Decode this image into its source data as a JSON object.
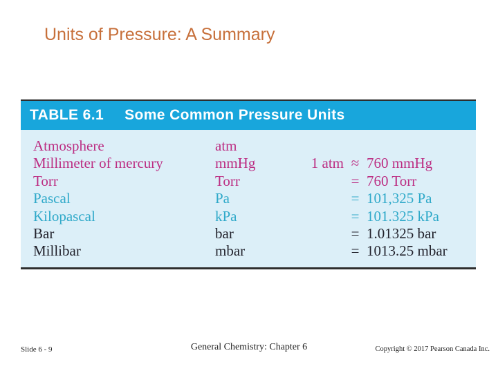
{
  "title": "Units of Pressure: A Summary",
  "table": {
    "label": "TABLE 6.1",
    "caption": "Some Common Pressure Units",
    "rows": [
      {
        "name": "Atmosphere",
        "abbr": "atm",
        "prefix": "",
        "sign": "",
        "value": "",
        "color": "magenta"
      },
      {
        "name": "Millimeter of mercury",
        "abbr": "mmHg",
        "prefix": "1 atm",
        "sign": "≈",
        "value": "760 mmHg",
        "color": "magenta"
      },
      {
        "name": "Torr",
        "abbr": "Torr",
        "prefix": "",
        "sign": "=",
        "value": "760 Torr",
        "color": "magenta"
      },
      {
        "name": "Pascal",
        "abbr": "Pa",
        "prefix": "",
        "sign": "=",
        "value": "101,325 Pa",
        "color": "cyan"
      },
      {
        "name": "Kilopascal",
        "abbr": "kPa",
        "prefix": "",
        "sign": "=",
        "value": "101.325 kPa",
        "color": "cyan"
      },
      {
        "name": "Bar",
        "abbr": "bar",
        "prefix": "",
        "sign": "=",
        "value": "1.01325 bar",
        "color": "black"
      },
      {
        "name": "Millibar",
        "abbr": "mbar",
        "prefix": "",
        "sign": "=",
        "value": "1013.25 mbar",
        "color": "black"
      }
    ]
  },
  "footer": {
    "slide_number": "Slide 6 - 9",
    "center": "General Chemistry: Chapter 6",
    "copyright": "Copyright © 2017 Pearson Canada Inc."
  },
  "colors": {
    "title": "#c7703b",
    "header_bg": "#18a6dc",
    "header_text": "#ffffff",
    "body_bg": "#dceff8",
    "magenta": "#bc2e83",
    "cyan": "#2fa9c9",
    "black": "#22222c"
  }
}
